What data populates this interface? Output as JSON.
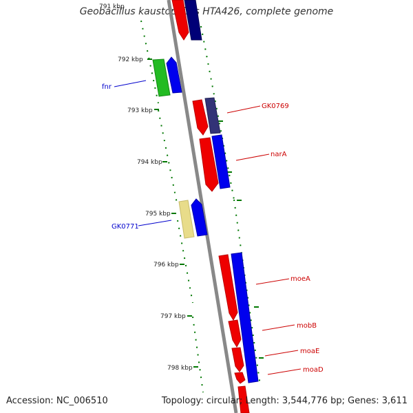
{
  "title": "Geobacillus kaustophilus HTA426, complete genome",
  "top_cut_label": "791 kbp",
  "accession": "Accession: NC_006510",
  "summary": "Topology: circular; Length: 3,544,776 bp; Genes: 3,611",
  "scale_ticks": [
    "792 kbp",
    "793 kbp",
    "794 kbp",
    "795 kbp",
    "796 kbp",
    "797 kbp",
    "798 kbp"
  ],
  "colors": {
    "backbone": "#888888",
    "forward_cds": "#0000ee",
    "reverse_cds": "#ee0000",
    "forward_other": "#22bb22",
    "reverse_other": "#e8dc8a",
    "dark_forward": "#333377",
    "navy": "#000077",
    "tick_green": "#007700",
    "label_blue": "#0000cc",
    "label_red": "#cc0000"
  },
  "gene_labels": [
    {
      "text": "fnr",
      "strand": "forward"
    },
    {
      "text": "GK0769",
      "strand": "reverse"
    },
    {
      "text": "narA",
      "strand": "reverse"
    },
    {
      "text": "GK0771",
      "strand": "forward"
    },
    {
      "text": "moeA",
      "strand": "reverse"
    },
    {
      "text": "mobB",
      "strand": "reverse"
    },
    {
      "text": "moaE",
      "strand": "reverse"
    },
    {
      "text": "moaD",
      "strand": "reverse"
    }
  ]
}
